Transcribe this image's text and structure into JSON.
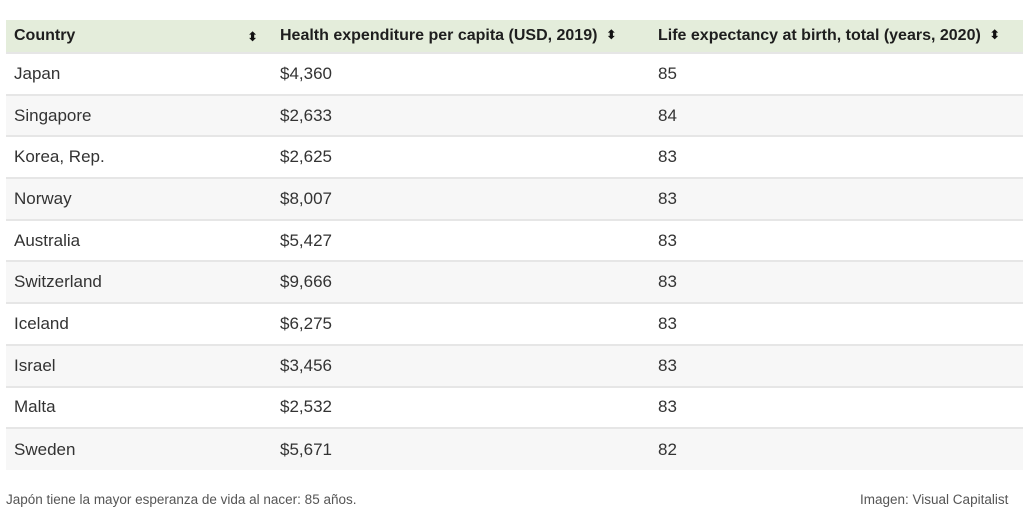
{
  "table": {
    "headers": [
      {
        "label": "Country",
        "sort_icon": "sort-updown-icon"
      },
      {
        "label": "Health expenditure per capita (USD, 2019)",
        "sort_icon": "sort-updown-icon"
      },
      {
        "label": "Life expectancy at birth, total (years, 2020)",
        "sort_icon": "sort-updown-icon"
      }
    ],
    "sort_glyph": "⬍",
    "rows": [
      {
        "country": "Japan",
        "expenditure": "$4,360",
        "life_expectancy": "85"
      },
      {
        "country": "Singapore",
        "expenditure": "$2,633",
        "life_expectancy": "84"
      },
      {
        "country": "Korea, Rep.",
        "expenditure": "$2,625",
        "life_expectancy": "83"
      },
      {
        "country": "Norway",
        "expenditure": "$8,007",
        "life_expectancy": "83"
      },
      {
        "country": "Australia",
        "expenditure": "$5,427",
        "life_expectancy": "83"
      },
      {
        "country": "Switzerland",
        "expenditure": "$9,666",
        "life_expectancy": "83"
      },
      {
        "country": "Iceland",
        "expenditure": "$6,275",
        "life_expectancy": "83"
      },
      {
        "country": "Israel",
        "expenditure": "$3,456",
        "life_expectancy": "83"
      },
      {
        "country": "Malta",
        "expenditure": "$2,532",
        "life_expectancy": "83"
      },
      {
        "country": "Sweden",
        "expenditure": "$5,671",
        "life_expectancy": "82"
      }
    ]
  },
  "caption": "Japón tiene la mayor esperanza de vida al nacer: 85 años.",
  "credit": "Imagen: Visual Capitalist",
  "colors": {
    "header_bg": "#e4eddb",
    "alt_row_bg": "#f7f7f7",
    "row_border": "#e6e6e6"
  }
}
